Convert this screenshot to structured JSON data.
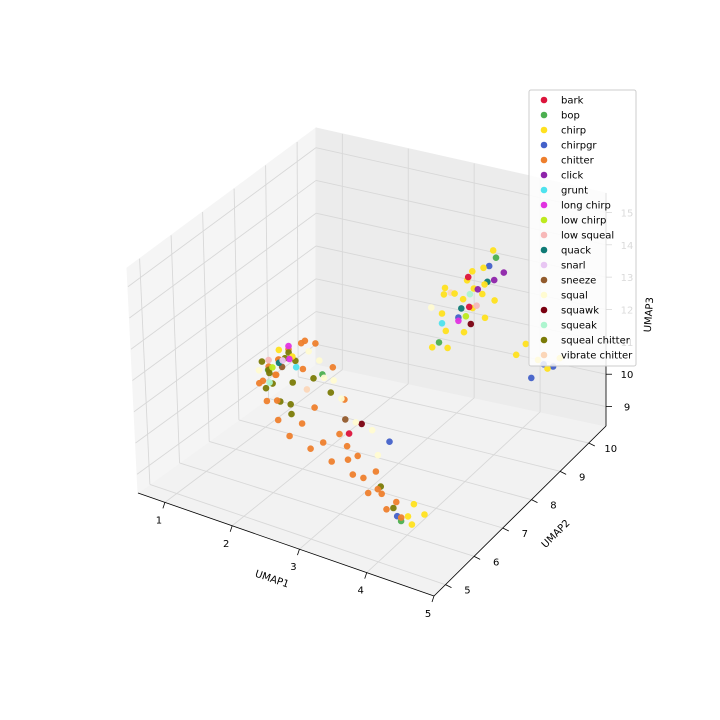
{
  "chart_data": {
    "type": "scatter",
    "projection": "3d",
    "xlabel": "UMAP1",
    "ylabel": "UMAP2",
    "zlabel": "UMAP3",
    "xlim": [
      0.6,
      5.0
    ],
    "ylim": [
      4.6,
      10.6
    ],
    "zlim": [
      8.4,
      15.6
    ],
    "xticks": [
      "1",
      "2",
      "3",
      "4",
      "5"
    ],
    "yticks": [
      "5",
      "6",
      "7",
      "8",
      "9",
      "10"
    ],
    "zticks": [
      "9",
      "10",
      "11",
      "12",
      "13",
      "14",
      "15"
    ],
    "grid": true,
    "legend_position": "top-right",
    "colors": {
      "bark": "#dc143c",
      "bop": "#4caf50",
      "chirp": "#ffe11f",
      "chirpgr": "#4361c9",
      "chitter": "#ee7f2d",
      "click": "#8e24aa",
      "grunt": "#4fe3ee",
      "long chirp": "#e133e1",
      "low chirp": "#bdea1f",
      "low squeal": "#f7b8b8",
      "quack": "#0f7a75",
      "snarl": "#e8c6f3",
      "sneeze": "#925b2d",
      "squal": "#fffbd1",
      "squawk": "#7a0010",
      "squeak": "#adf5cf",
      "squeal chitter": "#7b7b07",
      "vibrate chitter": "#fbd6b8"
    },
    "series": [
      {
        "name": "bark",
        "points": [
          [
            4.0,
            8.1,
            13.6
          ],
          [
            3.9,
            8.3,
            14.3
          ],
          [
            2.7,
            7.0,
            9.9
          ]
        ]
      },
      {
        "name": "bop",
        "points": [
          [
            4.1,
            8.8,
            14.6
          ],
          [
            1.1,
            7.9,
            10.3
          ],
          [
            4.2,
            5.3,
            9.5
          ],
          [
            2.0,
            7.7,
            10.8
          ],
          [
            3.6,
            8.0,
            12.4
          ]
        ]
      },
      {
        "name": "chirp",
        "points": [
          [
            3.7,
            8.3,
            13.7
          ],
          [
            3.8,
            8.5,
            14.0
          ],
          [
            4.0,
            8.6,
            14.4
          ],
          [
            3.6,
            8.1,
            13.2
          ],
          [
            3.9,
            8.9,
            12.6
          ],
          [
            4.2,
            9.3,
            11.3
          ],
          [
            4.4,
            9.6,
            11.0
          ],
          [
            4.6,
            9.9,
            10.9
          ],
          [
            3.8,
            8.7,
            13.0
          ],
          [
            3.5,
            8.0,
            12.2
          ],
          [
            4.3,
            5.3,
            9.7
          ],
          [
            4.4,
            5.2,
            9.6
          ],
          [
            4.5,
            5.4,
            9.8
          ],
          [
            4.1,
            8.4,
            14.1
          ],
          [
            3.7,
            8.0,
            12.8
          ],
          [
            4.5,
            9.7,
            10.7
          ],
          [
            3.9,
            8.8,
            13.4
          ],
          [
            3.6,
            8.2,
            13.9
          ],
          [
            4.0,
            8.2,
            14.6
          ],
          [
            4.1,
            8.7,
            14.9
          ],
          [
            3.8,
            8.4,
            12.5
          ],
          [
            4.3,
            9.4,
            11.6
          ],
          [
            1.6,
            7.6,
            11.2
          ],
          [
            1.4,
            7.6,
            11.3
          ],
          [
            3.7,
            8.6,
            13.3
          ],
          [
            3.5,
            8.4,
            13.5
          ],
          [
            4.0,
            9.0,
            13.1
          ],
          [
            3.6,
            8.3,
            12.0
          ],
          [
            4.3,
            5.5,
            9.9
          ],
          [
            3.9,
            8.5,
            13.8
          ]
        ]
      },
      {
        "name": "chirpgr",
        "points": [
          [
            4.5,
            9.9,
            10.6
          ],
          [
            4.3,
            9.6,
            10.4
          ],
          [
            3.3,
            7.0,
            10.0
          ],
          [
            4.1,
            5.4,
            9.5
          ],
          [
            3.8,
            8.2,
            13.1
          ],
          [
            4.4,
            9.8,
            10.7
          ],
          [
            4.0,
            8.8,
            14.3
          ]
        ]
      },
      {
        "name": "chitter",
        "points": [
          [
            1.4,
            7.6,
            11.0
          ],
          [
            1.2,
            7.7,
            10.6
          ],
          [
            1.1,
            7.6,
            10.1
          ],
          [
            1.3,
            7.4,
            9.8
          ],
          [
            1.6,
            7.1,
            9.6
          ],
          [
            1.9,
            6.8,
            9.5
          ],
          [
            2.3,
            6.6,
            9.5
          ],
          [
            2.7,
            6.4,
            9.5
          ],
          [
            3.1,
            6.2,
            9.5
          ],
          [
            3.5,
            5.8,
            9.5
          ],
          [
            3.9,
            5.5,
            9.5
          ],
          [
            4.2,
            5.3,
            9.6
          ],
          [
            1.5,
            7.7,
            11.3
          ],
          [
            1.7,
            7.8,
            11.6
          ],
          [
            1.9,
            7.7,
            11.7
          ],
          [
            2.2,
            7.6,
            11.2
          ],
          [
            2.5,
            7.3,
            10.6
          ],
          [
            1.3,
            7.8,
            10.8
          ],
          [
            1.2,
            7.5,
            10.3
          ],
          [
            1.5,
            7.3,
            10.0
          ],
          [
            2.0,
            7.0,
            9.8
          ],
          [
            2.4,
            6.8,
            9.6
          ],
          [
            2.9,
            6.5,
            9.6
          ],
          [
            3.3,
            6.1,
            9.6
          ],
          [
            3.7,
            5.8,
            9.6
          ],
          [
            4.0,
            5.6,
            9.7
          ],
          [
            1.6,
            7.9,
            11.4
          ],
          [
            1.8,
            7.5,
            11.0
          ],
          [
            2.1,
            7.2,
            10.2
          ],
          [
            2.6,
            6.9,
            9.9
          ],
          [
            3.0,
            6.6,
            9.7
          ],
          [
            3.4,
            6.3,
            9.7
          ],
          [
            1.3,
            7.7,
            10.4
          ],
          [
            1.4,
            7.5,
            10.6
          ],
          [
            2.8,
            6.7,
            9.8
          ],
          [
            3.6,
            5.9,
            9.6
          ]
        ]
      },
      {
        "name": "click",
        "points": [
          [
            4.2,
            8.5,
            14.2
          ],
          [
            4.3,
            8.6,
            14.4
          ],
          [
            4.0,
            8.4,
            13.9
          ]
        ]
      },
      {
        "name": "grunt",
        "points": [
          [
            3.6,
            8.1,
            12.9
          ],
          [
            1.7,
            7.5,
            11.0
          ]
        ]
      },
      {
        "name": "long chirp",
        "points": [
          [
            3.8,
            8.2,
            13.0
          ],
          [
            1.5,
            7.7,
            11.4
          ],
          [
            1.6,
            7.5,
            11.2
          ]
        ]
      },
      {
        "name": "low chirp",
        "points": [
          [
            3.7,
            8.7,
            12.7
          ],
          [
            1.3,
            7.6,
            10.7
          ]
        ]
      },
      {
        "name": "low squeal",
        "points": [
          [
            3.9,
            8.6,
            13.2
          ],
          [
            1.2,
            7.7,
            10.8
          ]
        ]
      },
      {
        "name": "quack",
        "points": [
          [
            4.1,
            8.5,
            14.1
          ],
          [
            3.8,
            8.3,
            13.3
          ],
          [
            1.4,
            7.6,
            10.9
          ]
        ]
      },
      {
        "name": "snarl",
        "points": [
          [
            1.5,
            7.5,
            11.1
          ]
        ]
      },
      {
        "name": "sneeze",
        "points": [
          [
            2.6,
            7.1,
            10.2
          ],
          [
            1.4,
            7.7,
            10.7
          ]
        ]
      },
      {
        "name": "squal",
        "points": [
          [
            1.8,
            7.7,
            11.4
          ],
          [
            2.0,
            7.6,
            11.3
          ],
          [
            2.3,
            7.4,
            11.0
          ],
          [
            2.5,
            7.2,
            10.7
          ],
          [
            2.8,
            7.0,
            10.3
          ],
          [
            3.3,
            6.6,
            9.9
          ],
          [
            1.1,
            7.6,
            10.5
          ],
          [
            3.0,
            7.1,
            10.1
          ],
          [
            2.2,
            7.3,
            11.1
          ],
          [
            3.4,
            8.2,
            13.2
          ]
        ]
      },
      {
        "name": "squawk",
        "points": [
          [
            2.8,
            7.2,
            10.1
          ],
          [
            3.9,
            8.4,
            12.8
          ]
        ]
      },
      {
        "name": "squeak",
        "points": [
          [
            1.3,
            7.5,
            10.3
          ],
          [
            3.8,
            8.6,
            13.5
          ]
        ]
      },
      {
        "name": "squeal chitter",
        "points": [
          [
            1.2,
            7.7,
            10.5
          ],
          [
            1.3,
            7.6,
            10.2
          ],
          [
            1.5,
            7.4,
            9.9
          ],
          [
            1.4,
            7.8,
            10.9
          ],
          [
            1.6,
            7.6,
            10.4
          ],
          [
            1.1,
            7.7,
            10.7
          ],
          [
            1.7,
            7.3,
            10.0
          ],
          [
            1.3,
            7.5,
            10.6
          ],
          [
            1.5,
            7.7,
            11.2
          ],
          [
            2.0,
            7.4,
            10.9
          ],
          [
            3.6,
            6.0,
            9.6
          ],
          [
            4.0,
            5.5,
            9.6
          ],
          [
            1.2,
            7.6,
            10.0
          ],
          [
            1.8,
            7.1,
            9.9
          ],
          [
            2.3,
            7.3,
            10.7
          ],
          [
            1.6,
            7.7,
            11.0
          ]
        ]
      },
      {
        "name": "vibrate chitter",
        "points": [
          [
            1.9,
            7.4,
            10.5
          ],
          [
            3.6,
            8.4,
            13.6
          ]
        ]
      }
    ]
  }
}
